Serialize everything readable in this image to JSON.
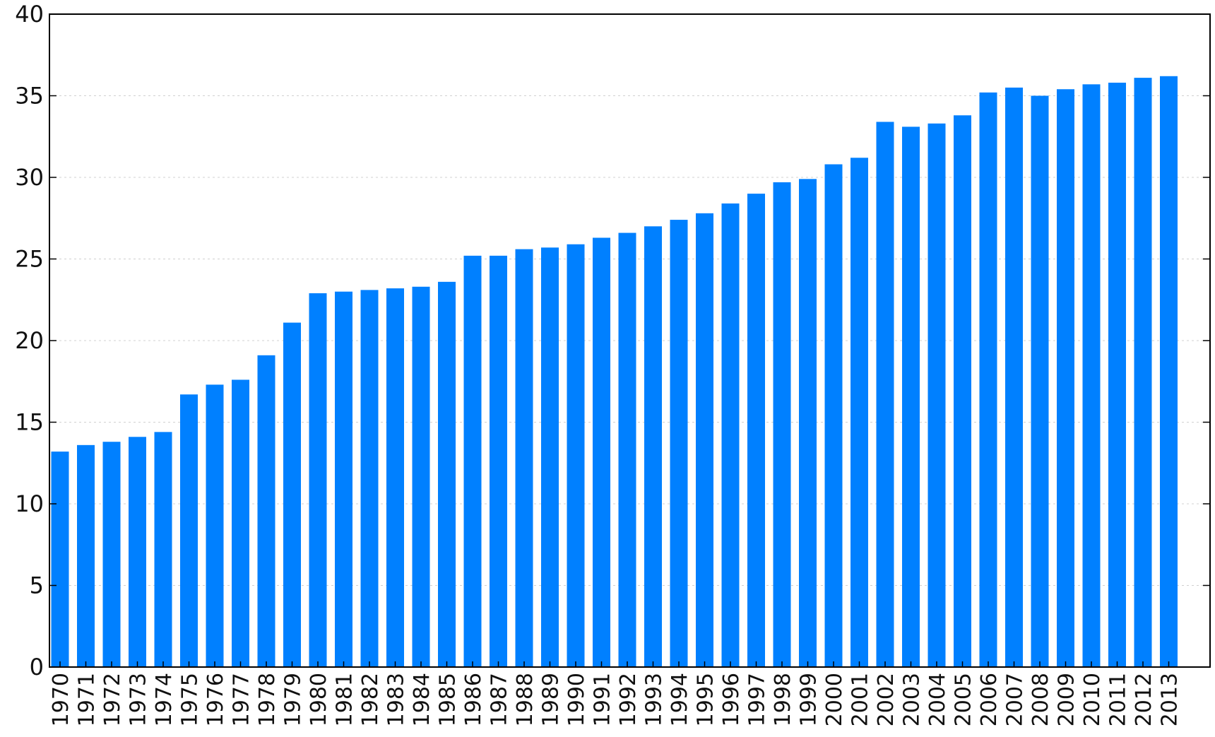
{
  "chart_data": {
    "type": "bar",
    "title": "",
    "xlabel": "",
    "ylabel": "",
    "categories": [
      "1970",
      "1971",
      "1972",
      "1973",
      "1974",
      "1975",
      "1976",
      "1977",
      "1978",
      "1979",
      "1980",
      "1981",
      "1982",
      "1983",
      "1984",
      "1985",
      "1986",
      "1987",
      "1988",
      "1989",
      "1990",
      "1991",
      "1992",
      "1993",
      "1994",
      "1995",
      "1996",
      "1997",
      "1998",
      "1999",
      "2000",
      "2001",
      "2002",
      "2003",
      "2004",
      "2005",
      "2006",
      "2007",
      "2008",
      "2009",
      "2010",
      "2011",
      "2012",
      "2013"
    ],
    "values": [
      13.2,
      13.6,
      13.8,
      14.1,
      14.4,
      16.7,
      17.3,
      17.6,
      19.1,
      21.1,
      22.9,
      23.0,
      23.1,
      23.2,
      23.3,
      23.6,
      25.2,
      25.2,
      25.6,
      25.7,
      25.9,
      26.3,
      26.6,
      27.0,
      27.4,
      27.8,
      28.4,
      29.0,
      29.7,
      29.9,
      30.8,
      31.2,
      33.4,
      33.1,
      33.3,
      33.8,
      35.2,
      35.5,
      35.0,
      35.4,
      35.7,
      35.8,
      36.1,
      36.2
    ],
    "ylim": [
      0,
      40
    ],
    "yticks": [
      "0",
      "5",
      "10",
      "15",
      "20",
      "25",
      "30",
      "35",
      "40"
    ],
    "grid": true,
    "bar_color": "#0080ff",
    "axis_color": "#000000",
    "grid_color": "#d0d0d0"
  }
}
